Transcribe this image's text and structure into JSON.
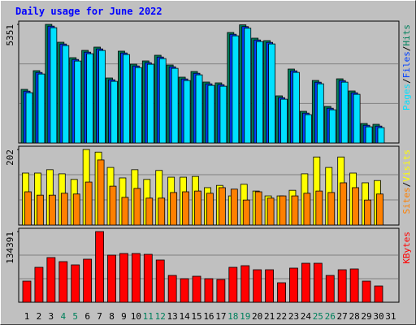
{
  "title": "Daily usage for June 2022",
  "legend_separator": "/",
  "chart_data": [
    {
      "type": "bar",
      "ylim": [
        0,
        5351
      ],
      "yticks": [
        5351
      ],
      "series": [
        {
          "name": "Hits",
          "color": "#00805c",
          "values": [
            2419,
            3262,
            5351,
            4545,
            3848,
            4178,
            4325,
            2932,
            4142,
            3555,
            3702,
            3958,
            3518,
            2969,
            3225,
            2749,
            2712,
            4985,
            5330,
            4728,
            4618,
            2126,
            3335,
            1429,
            2822,
            1649,
            2895,
            2346,
            880,
            843,
            null
          ]
        },
        {
          "name": "Files",
          "color": "#0040ff",
          "values": [
            2339,
            3182,
            5271,
            4465,
            3768,
            4098,
            4245,
            2852,
            4062,
            3475,
            3622,
            3878,
            3438,
            2889,
            3145,
            2669,
            2632,
            4905,
            5250,
            4648,
            4538,
            2046,
            3255,
            1349,
            2742,
            1569,
            2815,
            2266,
            800,
            763,
            null
          ]
        },
        {
          "name": "Pages",
          "color": "#00e0ff",
          "values": [
            2269,
            3112,
            5201,
            4395,
            3698,
            4028,
            4175,
            2782,
            3992,
            3405,
            3552,
            3808,
            3368,
            2819,
            3075,
            2599,
            2562,
            4835,
            5180,
            4578,
            4468,
            1976,
            3185,
            1279,
            2672,
            1499,
            2745,
            2196,
            730,
            693,
            null
          ]
        }
      ]
    },
    {
      "type": "bar",
      "ylim": [
        0,
        202
      ],
      "yticks": [
        202
      ],
      "series": [
        {
          "name": "Visits",
          "color": "#ffff00",
          "values": [
            139,
            139,
            148,
            137,
            122,
            202,
            195,
            154,
            126,
            148,
            122,
            146,
            128,
            128,
            130,
            100,
            106,
            78,
            109,
            91,
            78,
            78,
            93,
            137,
            182,
            154,
            182,
            139,
            113,
            119,
            null
          ]
        },
        {
          "name": "Sites",
          "color": "#ff8000",
          "values": [
            89,
            80,
            80,
            85,
            83,
            115,
            174,
            104,
            74,
            98,
            72,
            72,
            87,
            89,
            91,
            85,
            100,
            96,
            67,
            89,
            72,
            78,
            78,
            85,
            91,
            87,
            113,
            100,
            67,
            83,
            null
          ]
        }
      ]
    },
    {
      "type": "bar",
      "ylim": [
        0,
        134391
      ],
      "yticks": [
        134391
      ],
      "categories": [
        "1",
        "2",
        "3",
        "4",
        "5",
        "6",
        "7",
        "8",
        "9",
        "10",
        "11",
        "12",
        "13",
        "14",
        "15",
        "16",
        "17",
        "18",
        "19",
        "20",
        "21",
        "22",
        "23",
        "24",
        "25",
        "26",
        "27",
        "28",
        "29",
        "30",
        "31"
      ],
      "category_colors": [
        "#000000",
        "#000000",
        "#000000",
        "#00805c",
        "#00805c",
        "#000000",
        "#000000",
        "#000000",
        "#000000",
        "#000000",
        "#00805c",
        "#00805c",
        "#000000",
        "#000000",
        "#000000",
        "#000000",
        "#000000",
        "#00805c",
        "#00805c",
        "#000000",
        "#000000",
        "#000000",
        "#000000",
        "#000000",
        "#00805c",
        "#00805c",
        "#000000",
        "#000000",
        "#000000",
        "#000000",
        "#000000"
      ],
      "series": [
        {
          "name": "KBytes",
          "color": "#ff0000",
          "values": [
            40163,
            66423,
            84960,
            77236,
            71057,
            81871,
            134391,
            89594,
            92684,
            92684,
            91139,
            80326,
            50977,
            44797,
            49432,
            44797,
            43252,
            66423,
            69512,
            61789,
            61789,
            37073,
            64878,
            74147,
            74147,
            50977,
            61789,
            63334,
            40163,
            30895,
            null
          ]
        }
      ]
    }
  ]
}
